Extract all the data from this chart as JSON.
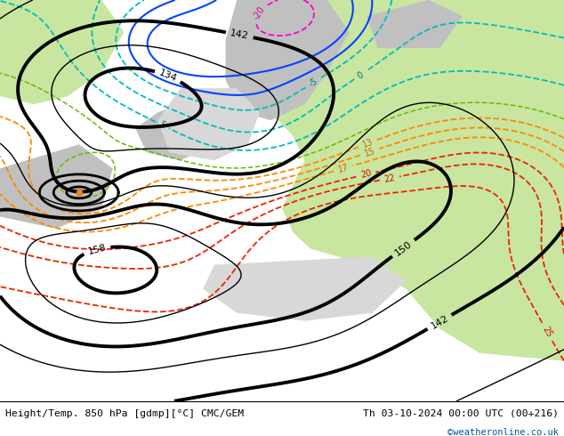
{
  "title_left": "Height/Temp. 850 hPa [gdmp][°C] CMC/GEM",
  "title_right": "Th 03-10-2024 00:00 UTC (00+216)",
  "watermark": "©weatheronline.co.uk",
  "figsize": [
    6.34,
    4.9
  ],
  "dpi": 100,
  "land_color_green": "#c8e6a0",
  "land_color_gray": "#c0c0c0",
  "sea_color": "#d8d8d8",
  "watermark_color": "#0055aa"
}
